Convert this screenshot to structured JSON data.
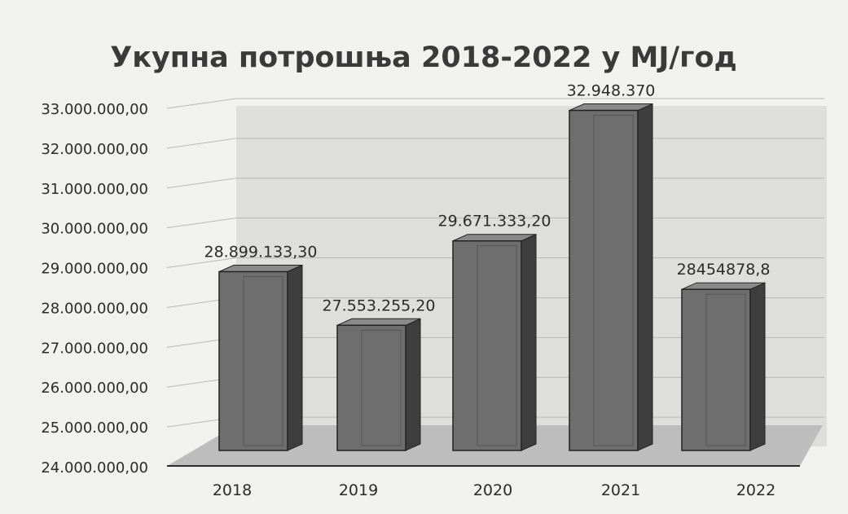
{
  "chart_data": {
    "type": "bar",
    "title": "Укупна потрошња 2018-2022 у MJ/год",
    "xlabel": "",
    "ylabel": "",
    "categories": [
      "2018",
      "2019",
      "2020",
      "2021",
      "2022"
    ],
    "values": [
      28899133.3,
      27553255.2,
      29671333.2,
      32948370,
      28454878.8
    ],
    "data_labels": [
      "28.899.133,30",
      "27.553.255,20",
      "29.671.333,20",
      "32.948.370",
      "28454878,8"
    ],
    "ylim": [
      24000000,
      33000000
    ],
    "y_ticks": [
      "24.000.000,00",
      "25.000.000,00",
      "26.000.000,00",
      "27.000.000,00",
      "28.000.000,00",
      "29.000.000,00",
      "30.000.000,00",
      "31.000.000,00",
      "32.000.000,00",
      "33.000.000,00"
    ],
    "grid": true,
    "legend": "none",
    "style": "3d-columns",
    "colors": {
      "bar_front": "#6e6e6e",
      "bar_side": "#3e3e3e",
      "bar_top": "#8a8a8a",
      "floor": "#bdbdbd",
      "wall": "#dcdcda",
      "grid": "#b8b8b8",
      "text": "#2b2b2b"
    }
  }
}
